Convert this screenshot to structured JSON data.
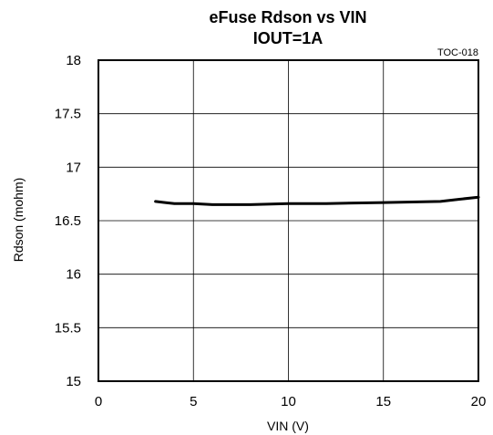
{
  "chart_data": {
    "type": "line",
    "title": "eFuse Rdson vs VIN",
    "subtitle": "IOUT=1A",
    "annotation": "TOC-018",
    "xlabel": "VIN (V)",
    "ylabel": "Rdson (mohm)",
    "xlim": [
      0,
      20
    ],
    "ylim": [
      15,
      18
    ],
    "xticks": [
      "0",
      "5",
      "10",
      "15",
      "20"
    ],
    "yticks": [
      "15",
      "15.5",
      "16",
      "16.5",
      "17",
      "17.5",
      "18"
    ],
    "grid": true,
    "series": [
      {
        "x": [
          3,
          3.5,
          4,
          5,
          6,
          8,
          10,
          12,
          15,
          18,
          19,
          20
        ],
        "y": [
          16.68,
          16.67,
          16.66,
          16.66,
          16.65,
          16.65,
          16.66,
          16.66,
          16.67,
          16.68,
          16.7,
          16.72
        ],
        "color": "#000000"
      }
    ]
  }
}
